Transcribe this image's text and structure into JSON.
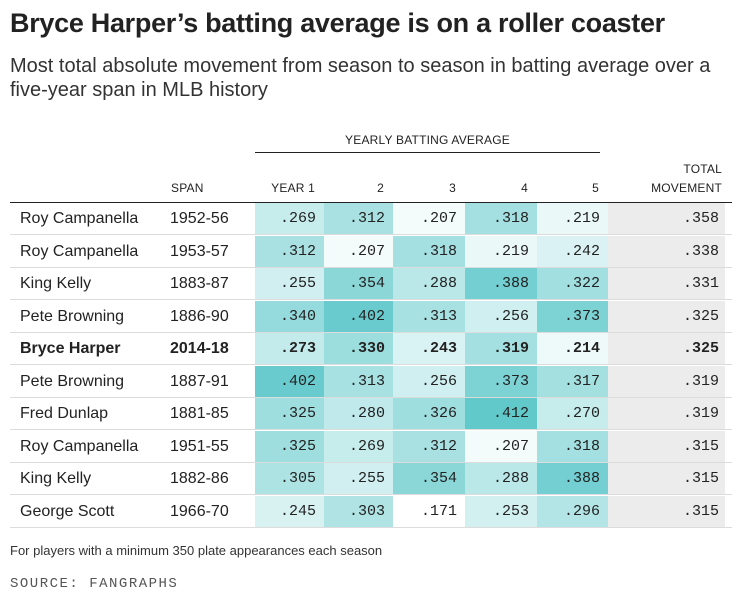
{
  "title": "Bryce Harper’s batting average is on a roller coaster",
  "subtitle": "Most total absolute movement from season to season in batting average over a five-year span in MLB history",
  "headers": {
    "group": "YEARLY BATTING AVERAGE",
    "span": "SPAN",
    "year1": "YEAR 1",
    "y2": "2",
    "y3": "3",
    "y4": "4",
    "y5": "5",
    "total_line1": "TOTAL",
    "total_line2": "MOVEMENT"
  },
  "colors": {
    "scale_low": "#ffffff",
    "scale_high": "#5cc7c9",
    "total_bg": "#ececec",
    "rule": "#222222"
  },
  "chart_data": {
    "type": "table",
    "columns": [
      "",
      "SPAN",
      "YEAR 1",
      "2",
      "3",
      "4",
      "5",
      "TOTAL MOVEMENT"
    ],
    "rows": [
      {
        "player": "Roy Campanella",
        "span": "1952-56",
        "averages": [
          ".269",
          ".312",
          ".207",
          ".318",
          ".219"
        ],
        "total": ".358",
        "highlight": false
      },
      {
        "player": "Roy Campanella",
        "span": "1953-57",
        "averages": [
          ".312",
          ".207",
          ".318",
          ".219",
          ".242"
        ],
        "total": ".338",
        "highlight": false
      },
      {
        "player": "King Kelly",
        "span": "1883-87",
        "averages": [
          ".255",
          ".354",
          ".288",
          ".388",
          ".322"
        ],
        "total": ".331",
        "highlight": false
      },
      {
        "player": "Pete Browning",
        "span": "1886-90",
        "averages": [
          ".340",
          ".402",
          ".313",
          ".256",
          ".373"
        ],
        "total": ".325",
        "highlight": false
      },
      {
        "player": "Bryce Harper",
        "span": "2014-18",
        "averages": [
          ".273",
          ".330",
          ".243",
          ".319",
          ".214"
        ],
        "total": ".325",
        "highlight": true
      },
      {
        "player": "Pete Browning",
        "span": "1887-91",
        "averages": [
          ".402",
          ".313",
          ".256",
          ".373",
          ".317"
        ],
        "total": ".319",
        "highlight": false
      },
      {
        "player": "Fred Dunlap",
        "span": "1881-85",
        "averages": [
          ".325",
          ".280",
          ".326",
          ".412",
          ".270"
        ],
        "total": ".319",
        "highlight": false
      },
      {
        "player": "Roy Campanella",
        "span": "1951-55",
        "averages": [
          ".325",
          ".269",
          ".312",
          ".207",
          ".318"
        ],
        "total": ".315",
        "highlight": false
      },
      {
        "player": "King Kelly",
        "span": "1882-86",
        "averages": [
          ".305",
          ".255",
          ".354",
          ".288",
          ".388"
        ],
        "total": ".315",
        "highlight": false
      },
      {
        "player": "George Scott",
        "span": "1966-70",
        "averages": [
          ".245",
          ".303",
          ".171",
          ".253",
          ".296"
        ],
        "total": ".315",
        "highlight": false
      }
    ]
  },
  "note": "For players with a minimum 350 plate appearances each season",
  "source": "SOURCE: FANGRAPHS"
}
